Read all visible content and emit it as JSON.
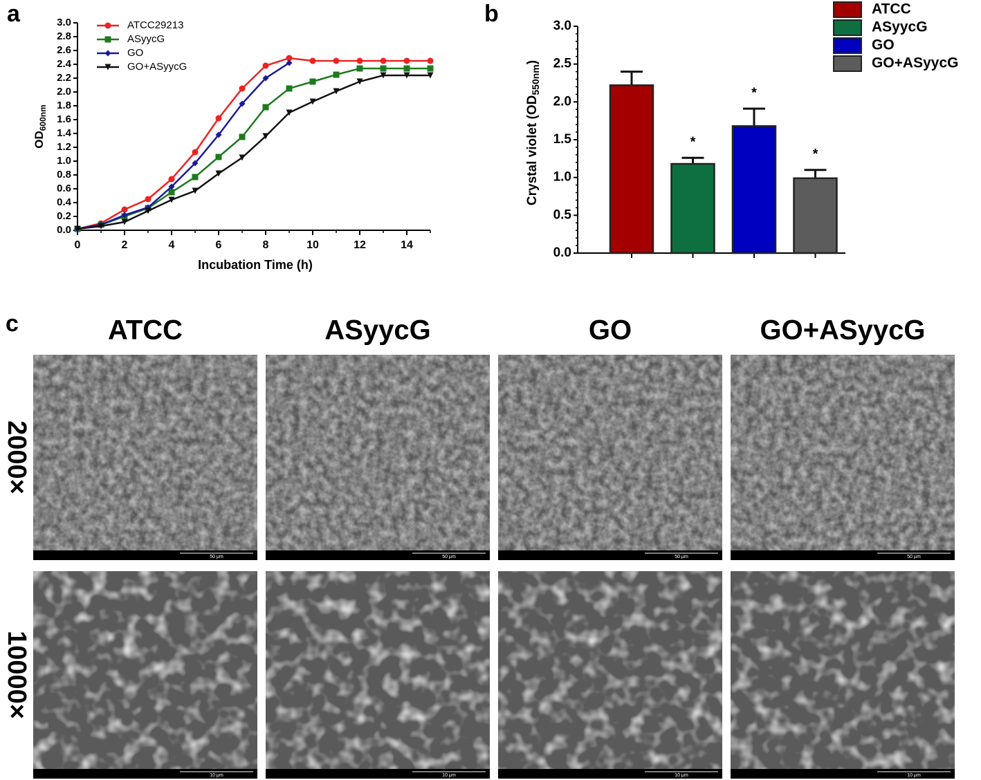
{
  "chart_data": [
    {
      "type": "line",
      "panel_label": "a",
      "x_label": "Incubation Time (h)",
      "y_label": [
        "OD",
        "600nm"
      ],
      "x": [
        0,
        1,
        2,
        3,
        4,
        5,
        6,
        7,
        8,
        9,
        10,
        11,
        12,
        13,
        14,
        15
      ],
      "xlim": [
        0,
        15
      ],
      "xticks": [
        0,
        2,
        4,
        6,
        8,
        10,
        12,
        14
      ],
      "ylim": [
        0,
        3
      ],
      "yticks": [
        {
          "value": 0,
          "label": "0.0"
        },
        {
          "value": 0.2,
          "label": "0.2"
        },
        {
          "value": 0.4,
          "label": "0.4"
        },
        {
          "value": 0.6,
          "label": "0.6"
        },
        {
          "value": 0.8,
          "label": "0.8"
        },
        {
          "value": 1,
          "label": "1.0"
        },
        {
          "value": 1.2,
          "label": "1.2"
        },
        {
          "value": 1.4,
          "label": "1.4"
        },
        {
          "value": 1.6,
          "label": "1.6"
        },
        {
          "value": 1.8,
          "label": "1.8"
        },
        {
          "value": 2,
          "label": "2.0"
        },
        {
          "value": 2.2,
          "label": "2.2"
        },
        {
          "value": 2.4,
          "label": "2.4"
        },
        {
          "value": 2.6,
          "label": "2.6"
        },
        {
          "value": 2.8,
          "label": "2.8"
        },
        {
          "value": 3,
          "label": "3.0"
        }
      ],
      "series": [
        {
          "name": "ATCC29213",
          "color": "#ee2222",
          "marker": "circle",
          "values": [
            0.02,
            0.1,
            0.3,
            0.45,
            0.74,
            1.13,
            1.62,
            2.05,
            2.38,
            2.49,
            2.45,
            2.45,
            2.45,
            2.45,
            2.45,
            2.45
          ]
        },
        {
          "name": "ASyycG",
          "color": "#1e7a1e",
          "marker": "square",
          "values": [
            0.02,
            0.08,
            0.2,
            0.32,
            0.55,
            0.77,
            1.06,
            1.35,
            1.78,
            2.05,
            2.15,
            2.25,
            2.34,
            2.34,
            2.34,
            2.34
          ]
        },
        {
          "name": "GO",
          "color": "#1a1a9a",
          "marker": "diamond",
          "values": [
            0.02,
            0.08,
            0.22,
            0.33,
            0.63,
            0.97,
            1.38,
            1.83,
            2.2,
            2.42,
            null,
            null,
            null,
            null,
            null,
            null
          ]
        },
        {
          "name": "GO+ASyycG",
          "color": "#111111",
          "marker": "triangle",
          "values": [
            0.02,
            0.06,
            0.12,
            0.28,
            0.44,
            0.57,
            0.82,
            1.05,
            1.36,
            1.7,
            1.86,
            2.01,
            2.15,
            2.24,
            2.24,
            2.24
          ]
        }
      ]
    },
    {
      "type": "bar",
      "panel_label": "b",
      "y_label": [
        "Crystal violet (OD",
        "550nm",
        ")"
      ],
      "ylim": [
        0,
        3
      ],
      "yticks": [
        {
          "value": 0,
          "label": "0.0"
        },
        {
          "value": 0.5,
          "label": "0.5"
        },
        {
          "value": 1,
          "label": "1.0"
        },
        {
          "value": 1.5,
          "label": "1.5"
        },
        {
          "value": 2,
          "label": "2.0"
        },
        {
          "value": 2.5,
          "label": "2.5"
        },
        {
          "value": 3,
          "label": "3.0"
        }
      ],
      "series": [
        {
          "name": "ATCC",
          "color": "#a50000",
          "values": [
            2.22
          ],
          "errors": [
            0.18
          ]
        },
        {
          "name": "ASyycG",
          "color": "#0e7040",
          "values": [
            1.18
          ],
          "errors": [
            0.08
          ],
          "annotation": "*"
        },
        {
          "name": "GO",
          "color": "#0000c0",
          "values": [
            1.68
          ],
          "errors": [
            0.23
          ],
          "annotation": "*"
        },
        {
          "name": "GO+ASyycG",
          "color": "#5c5c5c",
          "values": [
            0.99
          ],
          "errors": [
            0.11
          ],
          "annotation": "*"
        }
      ]
    }
  ],
  "panel_c": {
    "label": "c",
    "columns": [
      "ATCC",
      "ASyycG",
      "GO",
      "GO+ASyycG"
    ],
    "rows": [
      "2000×",
      "10000×"
    ],
    "scale_bars": [
      "50 μm",
      "10 μm"
    ]
  }
}
